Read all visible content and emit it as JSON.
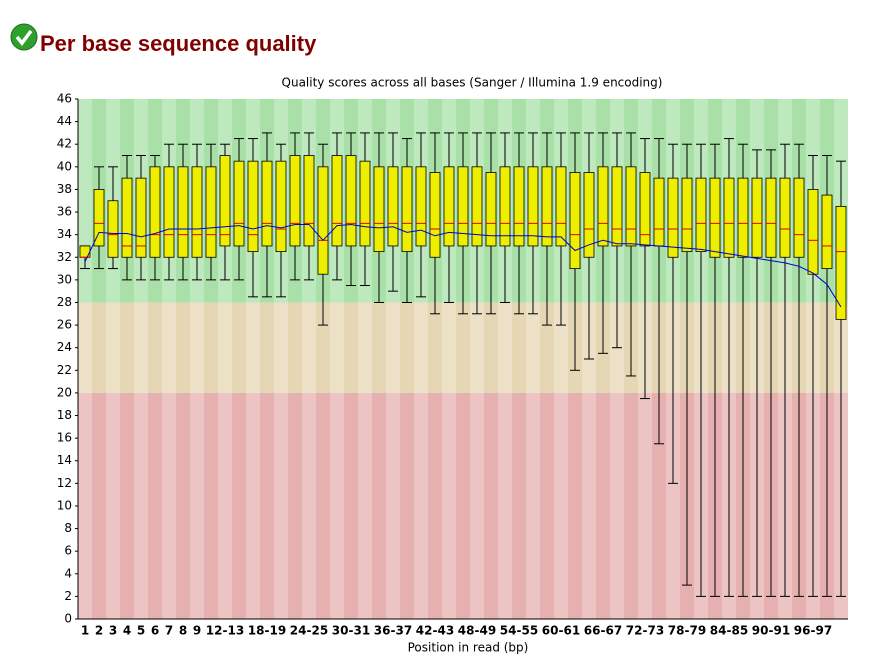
{
  "heading": "Per base sequence quality",
  "chart_data": {
    "type": "box",
    "title": "Quality scores across all bases (Sanger / Illumina 1.9 encoding)",
    "x_label": "Position in read (bp)",
    "categories": [
      "1",
      "2",
      "3",
      "4",
      "5",
      "6",
      "7",
      "8",
      "9",
      null,
      "12-13",
      null,
      null,
      "18-19",
      null,
      null,
      "24-25",
      null,
      null,
      "30-31",
      null,
      null,
      "36-37",
      null,
      null,
      "42-43",
      null,
      null,
      "48-49",
      null,
      null,
      "54-55",
      null,
      null,
      "60-61",
      null,
      null,
      "66-67",
      null,
      null,
      "72-73",
      null,
      null,
      "78-79",
      null,
      null,
      "84-85",
      null,
      null,
      "90-91",
      null,
      null,
      "96-97",
      null,
      null
    ],
    "whisker_low": [
      31,
      31,
      31,
      30,
      30,
      30,
      30,
      30,
      30,
      30,
      30,
      30,
      28.5,
      28.5,
      28.5,
      30,
      30,
      26,
      30,
      29.5,
      29.5,
      28,
      29,
      28,
      28.5,
      27,
      28,
      27,
      27,
      27,
      28,
      27,
      27,
      26,
      26,
      22,
      23,
      23.5,
      24,
      21.5,
      19.5,
      15.5,
      12,
      3,
      2,
      2,
      2,
      2,
      2,
      2,
      2,
      2,
      2,
      2,
      2
    ],
    "q1": [
      32,
      33,
      32,
      32,
      32,
      32,
      32,
      32,
      32,
      32,
      33,
      33,
      32.5,
      33,
      32.5,
      33,
      33,
      30.5,
      33,
      33,
      33,
      32.5,
      33,
      32.5,
      33,
      32,
      33,
      33,
      33,
      33,
      33,
      33,
      33,
      33,
      33,
      31,
      32,
      33,
      33,
      33,
      33,
      33,
      32,
      32.5,
      32.5,
      32,
      32,
      32,
      32,
      32,
      32,
      32,
      30.5,
      31,
      26.5
    ],
    "median": [
      32,
      35,
      34,
      33,
      33,
      34,
      34,
      34,
      34,
      34,
      34,
      35,
      34,
      35,
      34.5,
      35,
      35,
      33.5,
      35,
      35,
      35,
      35,
      35,
      35,
      35,
      34.5,
      35,
      35,
      35,
      35,
      35,
      35,
      35,
      35,
      35,
      34,
      34.5,
      35,
      34.5,
      34.5,
      34,
      34.5,
      34.5,
      34.5,
      35,
      35,
      35,
      35,
      35,
      35,
      34.5,
      34,
      33.5,
      33,
      32.5
    ],
    "q3": [
      33,
      38,
      37,
      39,
      39,
      40,
      40,
      40,
      40,
      40,
      41,
      40.5,
      40.5,
      40.5,
      40.5,
      41,
      41,
      40,
      41,
      41,
      40.5,
      40,
      40,
      40,
      40,
      39.5,
      40,
      40,
      40,
      39.5,
      40,
      40,
      40,
      40,
      40,
      39.5,
      39.5,
      40,
      40,
      40,
      39.5,
      39,
      39,
      39,
      39,
      39,
      39,
      39,
      39,
      39,
      39,
      39,
      38,
      37.5,
      36.5
    ],
    "whisker_high": [
      33,
      40,
      40,
      41,
      41,
      41,
      42,
      42,
      42,
      42,
      42,
      42.5,
      42.5,
      43,
      42,
      43,
      43,
      42,
      43,
      43,
      43,
      43,
      43,
      42.5,
      43,
      43,
      43,
      43,
      43,
      43,
      43,
      43,
      43,
      43,
      43,
      43,
      43,
      43,
      43,
      43,
      42.5,
      42.5,
      42,
      42,
      42,
      42,
      42.5,
      42,
      41.5,
      41.5,
      42,
      42,
      41,
      41,
      40.5
    ],
    "mean": [
      31.6,
      34.2,
      34.1,
      34.1,
      33.8,
      34.1,
      34.5,
      34.5,
      34.5,
      34.6,
      34.7,
      34.8,
      34.5,
      34.8,
      34.6,
      34.9,
      34.9,
      33.5,
      34.8,
      34.9,
      34.7,
      34.6,
      34.7,
      34.2,
      34.4,
      33.9,
      34.2,
      34.1,
      34,
      33.9,
      33.9,
      33.9,
      33.9,
      33.8,
      33.8,
      32.6,
      33.1,
      33.5,
      33.2,
      33.2,
      33.1,
      33,
      32.9,
      32.8,
      32.7,
      32.5,
      32.3,
      32.1,
      31.9,
      31.7,
      31.5,
      31.2,
      30.6,
      29.6,
      27.6
    ],
    "box_color": "#eeee00",
    "median_color": "#dd0000",
    "mean_color": "#0000cc",
    "zones": [
      {
        "from": 28,
        "to": 46,
        "color": "#a8e0a8"
      },
      {
        "from": 20,
        "to": 28,
        "color": "#e6d7b4"
      },
      {
        "from": 0,
        "to": 20,
        "color": "#e6b0b0"
      }
    ],
    "ylim": [
      0,
      46
    ],
    "yticks": [
      0,
      2,
      4,
      6,
      8,
      10,
      12,
      14,
      16,
      18,
      20,
      22,
      24,
      26,
      28,
      30,
      32,
      34,
      36,
      38,
      40,
      42,
      44,
      46
    ]
  }
}
